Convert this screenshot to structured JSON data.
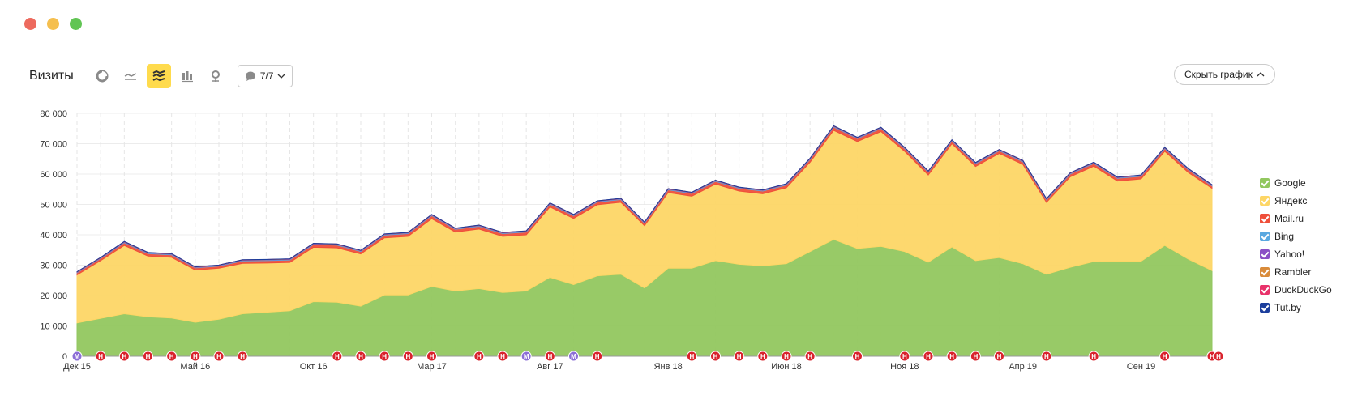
{
  "window": {
    "dot_colors": [
      "#ed6a5e",
      "#f5bf4f",
      "#61c554"
    ]
  },
  "toolbar": {
    "title": "Визиты",
    "icons": [
      "pie-chart-icon",
      "line-chart-icon",
      "stacked-area-icon",
      "bar-chart-icon",
      "map-pin-icon"
    ],
    "filter_label": "7/7",
    "hide_chart_label": "Скрыть график",
    "accent_color": "#ffdb4d"
  },
  "chart_data": {
    "type": "area",
    "stacked": true,
    "x": [
      "Dec 2015",
      "Jan 2016",
      "Feb 2016",
      "Mar 2016",
      "Apr 2016",
      "May 2016",
      "Jun 2016",
      "Jul 2016",
      "Aug 2016",
      "Sep 2016",
      "Oct 2016",
      "Nov 2016",
      "Dec 2016",
      "Jan 2017",
      "Feb 2017",
      "Mar 2017",
      "Apr 2017",
      "May 2017",
      "Jun 2017",
      "Jul 2017",
      "Aug 2017",
      "Sep 2017",
      "Oct 2017",
      "Nov 2017",
      "Dec 2017",
      "Jan 2018",
      "Feb 2018",
      "Mar 2018",
      "Apr 2018",
      "May 2018",
      "Jun 2018",
      "Jul 2018",
      "Aug 2018",
      "Sep 2018",
      "Oct 2018",
      "Nov 2018",
      "Dec 2018",
      "Jan 2019",
      "Feb 2019",
      "Mar 2019",
      "Apr 2019",
      "May 2019",
      "Jun 2019",
      "Jul 2019",
      "Aug 2019",
      "Sep 2019",
      "Oct 2019",
      "Nov 2019",
      "Dec 2019"
    ],
    "x_tick_labels": [
      "Дек 15",
      "Май 16",
      "Окт 16",
      "Мар 17",
      "Авг 17",
      "Янв 18",
      "Июн 18",
      "Ноя 18",
      "Апр 19",
      "Сен 19"
    ],
    "x_tick_indices": [
      0,
      5,
      10,
      15,
      20,
      25,
      30,
      35,
      40,
      45
    ],
    "ylim": [
      0,
      80000
    ],
    "y_ticks": [
      "0",
      "10 000",
      "20 000",
      "30 000",
      "40 000",
      "50 000",
      "60 000",
      "70 000",
      "80 000"
    ],
    "grid": true,
    "legend_position": "right",
    "series": [
      {
        "name": "Google",
        "color": "#92c75f",
        "values": [
          11000,
          12500,
          14000,
          13000,
          12600,
          11200,
          12200,
          14000,
          14500,
          15000,
          18000,
          17800,
          16500,
          20200,
          20200,
          23000,
          21500,
          22300,
          21000,
          21500,
          26000,
          23600,
          26500,
          27000,
          22500,
          29000,
          29000,
          31500,
          30300,
          29800,
          30500,
          34500,
          38500,
          35500,
          36200,
          34500,
          31000,
          36000,
          31500,
          32500,
          30500,
          27000,
          29300,
          31200,
          31300,
          31300,
          36500,
          32000,
          28200
        ]
      },
      {
        "name": "Яндекс",
        "color": "#fdd666",
        "values": [
          15800,
          19000,
          22500,
          20000,
          20000,
          17200,
          16800,
          16600,
          16200,
          15900,
          17900,
          17900,
          17200,
          18800,
          19300,
          22300,
          19400,
          19600,
          18500,
          18500,
          23200,
          21800,
          23400,
          23700,
          20500,
          24900,
          23700,
          25200,
          24100,
          23700,
          25000,
          29400,
          35900,
          35200,
          37800,
          33000,
          28700,
          34000,
          31000,
          34300,
          32700,
          23700,
          29800,
          31400,
          26400,
          27100,
          31000,
          28500,
          27100
        ]
      },
      {
        "name": "Mail.ru",
        "color": "#ef4f3a",
        "values": [
          700,
          700,
          900,
          800,
          800,
          700,
          700,
          800,
          800,
          800,
          900,
          900,
          800,
          900,
          900,
          1000,
          900,
          900,
          900,
          900,
          900,
          900,
          900,
          900,
          800,
          900,
          900,
          900,
          900,
          900,
          900,
          900,
          1100,
          1000,
          1000,
          900,
          900,
          900,
          900,
          900,
          900,
          800,
          900,
          900,
          900,
          900,
          900,
          900,
          800
        ]
      },
      {
        "name": "Bing",
        "color": "#5aa8e0",
        "values": [
          150,
          150,
          200,
          200,
          200,
          150,
          150,
          200,
          200,
          200,
          200,
          200,
          200,
          200,
          200,
          200,
          200,
          200,
          200,
          200,
          200,
          200,
          200,
          200,
          200,
          200,
          200,
          200,
          200,
          200,
          200,
          200,
          200,
          200,
          200,
          200,
          200,
          200,
          200,
          200,
          200,
          200,
          200,
          200,
          200,
          200,
          200,
          200,
          200
        ]
      },
      {
        "name": "Yahoo!",
        "color": "#8b4fc5",
        "values": [
          100,
          100,
          100,
          100,
          100,
          100,
          100,
          100,
          100,
          100,
          100,
          100,
          100,
          100,
          100,
          100,
          100,
          100,
          100,
          100,
          100,
          100,
          100,
          100,
          100,
          100,
          100,
          100,
          100,
          100,
          100,
          100,
          100,
          100,
          100,
          100,
          100,
          100,
          100,
          100,
          100,
          100,
          100,
          100,
          100,
          100,
          100,
          100,
          100
        ]
      },
      {
        "name": "Rambler",
        "color": "#d98b3a",
        "values": [
          50,
          50,
          50,
          50,
          50,
          50,
          50,
          50,
          50,
          50,
          50,
          50,
          50,
          50,
          50,
          50,
          50,
          50,
          50,
          50,
          50,
          50,
          50,
          50,
          50,
          50,
          50,
          50,
          50,
          50,
          50,
          50,
          50,
          50,
          50,
          50,
          50,
          50,
          50,
          50,
          50,
          50,
          50,
          50,
          50,
          50,
          50,
          50,
          50
        ]
      },
      {
        "name": "DuckDuckGo",
        "color": "#e8336b",
        "values": [
          30,
          30,
          30,
          30,
          30,
          30,
          30,
          30,
          30,
          30,
          30,
          30,
          30,
          30,
          30,
          30,
          30,
          30,
          30,
          30,
          30,
          30,
          30,
          30,
          30,
          30,
          30,
          30,
          30,
          30,
          30,
          30,
          30,
          30,
          30,
          30,
          30,
          30,
          30,
          30,
          30,
          30,
          30,
          30,
          30,
          30,
          30,
          30,
          30
        ]
      },
      {
        "name": "Tut.by",
        "color": "#1c3e9c",
        "values": [
          20,
          20,
          20,
          20,
          20,
          20,
          20,
          20,
          20,
          20,
          20,
          20,
          20,
          20,
          20,
          20,
          20,
          20,
          20,
          20,
          20,
          20,
          20,
          20,
          20,
          20,
          20,
          20,
          20,
          20,
          20,
          20,
          20,
          20,
          20,
          20,
          20,
          20,
          20,
          20,
          20,
          20,
          20,
          20,
          20,
          20,
          20,
          20,
          20
        ]
      }
    ],
    "annotations": [
      {
        "type": "М",
        "positions": [
          0,
          4,
          12,
          19,
          21,
          48
        ]
      },
      {
        "type": "Н",
        "positions": [
          1,
          2,
          3,
          4,
          5,
          6,
          7,
          11,
          12,
          13,
          14,
          15,
          17,
          18,
          20,
          22,
          26,
          27,
          28,
          29,
          30,
          31,
          33,
          35,
          36,
          37,
          38,
          39,
          41,
          43,
          46,
          48,
          49
        ]
      }
    ],
    "annotation_colors": {
      "М": "#8c6fd6",
      "Н": "#d9232d"
    }
  }
}
